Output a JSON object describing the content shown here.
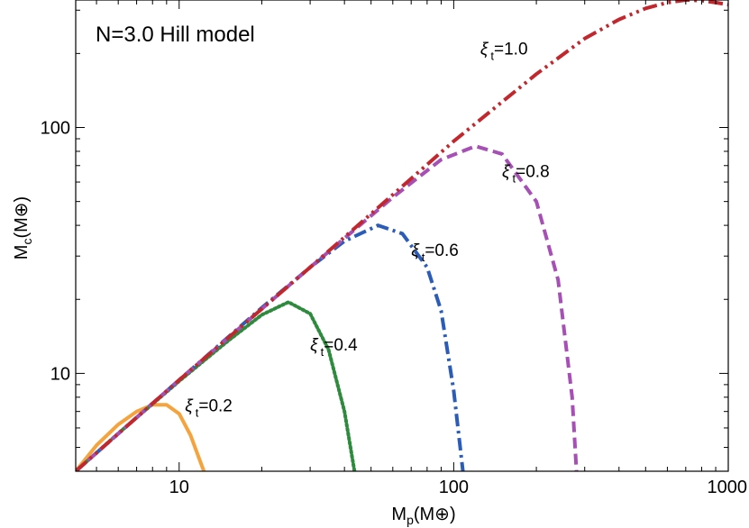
{
  "chart_data": {
    "type": "line",
    "title": "N=3.0 Hill model",
    "xlabel": {
      "main": "M",
      "sub": "p",
      "unit": "(M⊕)"
    },
    "ylabel": {
      "main": "M",
      "sub": "c",
      "unit": "(M⊕)"
    },
    "xscale": "log",
    "yscale": "log",
    "xlim": [
      4.2,
      1000
    ],
    "ylim": [
      4.0,
      330
    ],
    "xticks": [
      10,
      100,
      1000
    ],
    "xtick_labels": [
      "10",
      "100",
      "1000"
    ],
    "yticks": [
      10,
      100
    ],
    "ytick_labels": [
      "10",
      "100"
    ],
    "grid": false,
    "series": [
      {
        "label": {
          "main": "ξ",
          "sub": "t",
          "value": "=0.2"
        },
        "color": "#f5a33c",
        "dash": "solid",
        "x": [
          4.2,
          5,
          6,
          7,
          8,
          9,
          10,
          11,
          12.3
        ],
        "y": [
          4.0,
          5.1,
          6.2,
          7.0,
          7.45,
          7.45,
          6.85,
          5.6,
          4.0
        ]
      },
      {
        "label": {
          "main": "ξ",
          "sub": "t",
          "value": "=0.4"
        },
        "color": "#2e8b3e",
        "dash": "dotted",
        "x": [
          4.2,
          6,
          10,
          15,
          20,
          25,
          30,
          35,
          40,
          43.5
        ],
        "y": [
          4.0,
          5.7,
          9.3,
          13.5,
          17.3,
          19.5,
          17.5,
          12.5,
          7.0,
          4.0
        ]
      },
      {
        "label": {
          "main": "ξ",
          "sub": "t",
          "value": "=0.6"
        },
        "color": "#2a5cb8",
        "dash": "dashdot",
        "x": [
          4.2,
          10,
          20,
          30,
          40,
          53,
          65,
          80,
          90,
          100,
          108
        ],
        "y": [
          4.0,
          9.4,
          18.5,
          27,
          34.5,
          40,
          37,
          27,
          18,
          8.5,
          4.0
        ]
      },
      {
        "label": {
          "main": "ξ",
          "sub": "t",
          "value": "=0.8"
        },
        "color": "#a64fb5",
        "dash": "dashed",
        "x": [
          4.2,
          10,
          30,
          60,
          90,
          120,
          150,
          200,
          240,
          270,
          280
        ],
        "y": [
          4.0,
          9.4,
          27,
          52,
          74,
          84,
          78,
          50,
          24,
          8.0,
          4.0
        ]
      },
      {
        "label": {
          "main": "ξ",
          "sub": "t",
          "value": "=1.0"
        },
        "color": "#c1272d",
        "dash": "dashdotdot",
        "x": [
          4.2,
          10,
          30,
          100,
          200,
          300,
          400,
          500,
          600,
          700,
          800,
          900,
          1000
        ],
        "y": [
          4.0,
          9.4,
          27,
          88,
          165,
          230,
          275,
          305,
          322,
          330,
          328,
          322,
          316
        ]
      }
    ],
    "annotations": [
      {
        "series": 0,
        "x": 10.5,
        "y": 7.0
      },
      {
        "series": 1,
        "x": 30,
        "y": 12.4
      },
      {
        "series": 2,
        "x": 70,
        "y": 30
      },
      {
        "series": 3,
        "x": 150,
        "y": 63
      },
      {
        "series": 4,
        "x": 125,
        "y": 198
      }
    ]
  }
}
